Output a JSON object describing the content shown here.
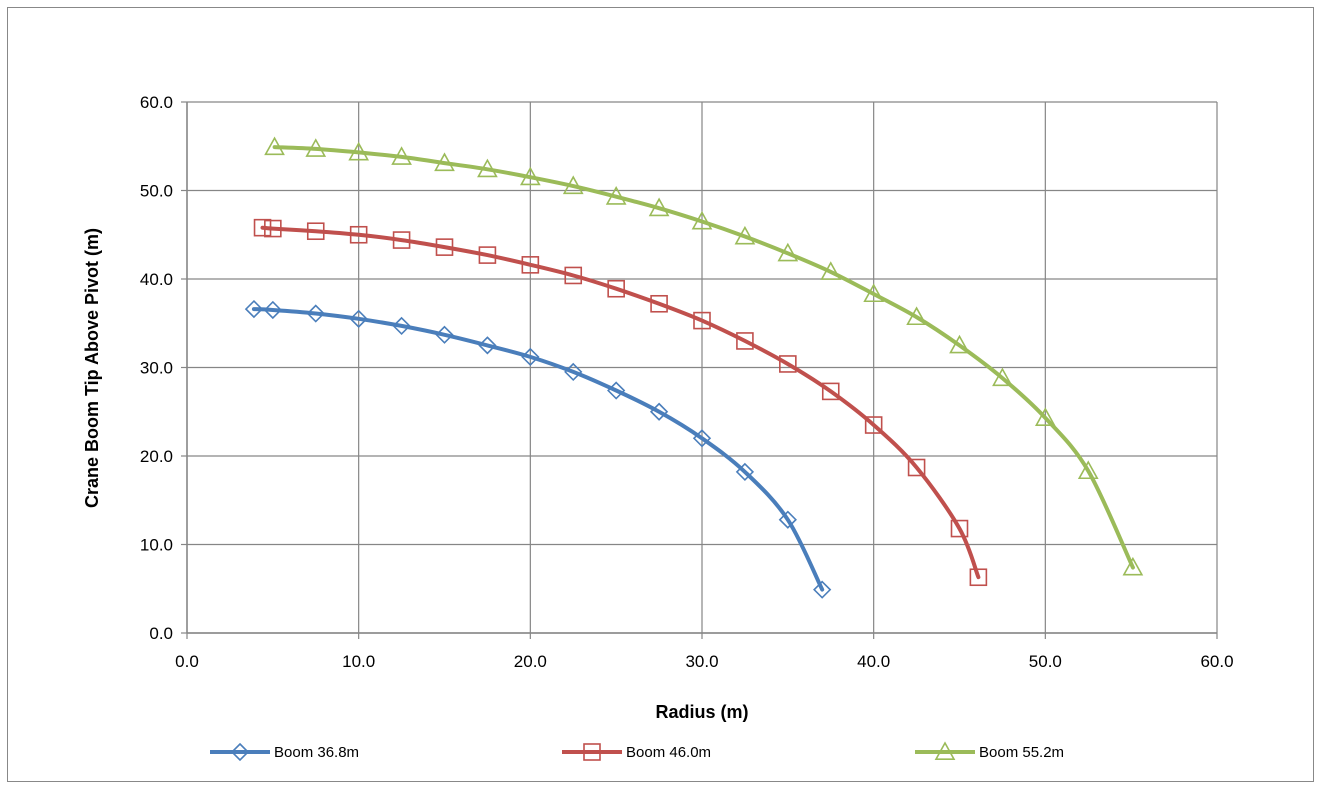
{
  "chart_data": {
    "type": "line",
    "title": "",
    "xlabel": "Radius (m)",
    "ylabel": "Crane Boom Tip Above Pivot (m)",
    "xlim": [
      0,
      60
    ],
    "ylim": [
      0,
      60
    ],
    "xticks": [
      "0.0",
      "10.0",
      "20.0",
      "30.0",
      "40.0",
      "50.0",
      "60.0"
    ],
    "yticks": [
      "0.0",
      "10.0",
      "20.0",
      "30.0",
      "40.0",
      "50.0",
      "60.0"
    ],
    "grid": true,
    "legend_position": "bottom",
    "series": [
      {
        "name": "Boom 36.8m",
        "color": "#4a7ebb",
        "marker": "diamond",
        "x": [
          3.9,
          5,
          7.5,
          10,
          12.5,
          15,
          17.5,
          20,
          22.5,
          25,
          27.5,
          30,
          32.5,
          35,
          37
        ],
        "y": [
          36.6,
          36.5,
          36.1,
          35.5,
          34.7,
          33.7,
          32.5,
          31.2,
          29.5,
          27.4,
          25,
          22,
          18.2,
          12.8,
          4.9
        ]
      },
      {
        "name": "Boom 46.0m",
        "color": "#c0504d",
        "marker": "square",
        "x": [
          4.4,
          5,
          7.5,
          10,
          12.5,
          15,
          17.5,
          20,
          22.5,
          25,
          27.5,
          30,
          32.5,
          35,
          37.5,
          40,
          42.5,
          45,
          46.1
        ],
        "y": [
          45.8,
          45.7,
          45.4,
          45,
          44.4,
          43.6,
          42.7,
          41.6,
          40.4,
          38.9,
          37.2,
          35.3,
          33,
          30.4,
          27.3,
          23.5,
          18.7,
          11.8,
          6.3
        ]
      },
      {
        "name": "Boom 55.2m",
        "color": "#9bbb59",
        "marker": "triangle",
        "x": [
          5.1,
          7.5,
          10,
          12.5,
          15,
          17.5,
          20,
          22.5,
          25,
          27.5,
          30,
          32.5,
          35,
          37.5,
          40,
          42.5,
          45,
          47.5,
          50,
          52.5,
          55.1
        ],
        "y": [
          54.9,
          54.7,
          54.3,
          53.8,
          53.1,
          52.4,
          51.5,
          50.5,
          49.3,
          48,
          46.5,
          44.8,
          42.9,
          40.8,
          38.3,
          35.7,
          32.5,
          28.8,
          24.3,
          18.3,
          7.4
        ]
      }
    ]
  }
}
